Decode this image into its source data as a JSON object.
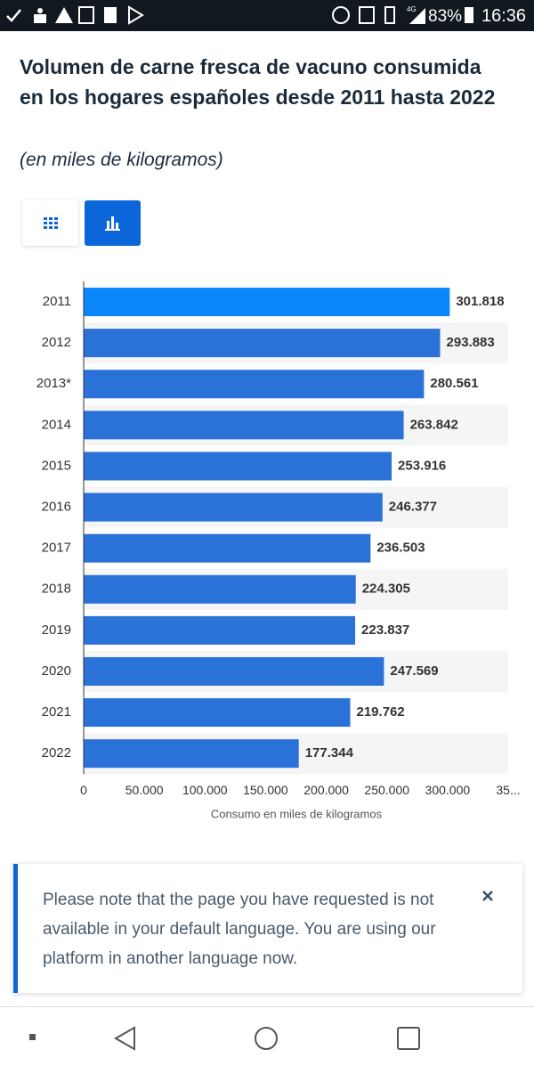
{
  "status_bar": {
    "network": "4G",
    "battery": "83%",
    "time": "16:36"
  },
  "chart_data": {
    "type": "bar",
    "orientation": "horizontal",
    "title": "Volumen de carne fresca de vacuno consumida en los hogares españoles desde 2011 hasta 2022",
    "subtitle": "(en miles de kilogramos)",
    "x_label": "Consumo en miles de kilogramos",
    "categories": [
      "2011",
      "2012",
      "2013*",
      "2014",
      "2015",
      "2016",
      "2017",
      "2018",
      "2019",
      "2020",
      "2021",
      "2022"
    ],
    "values": [
      301818,
      293883,
      280561,
      263842,
      253916,
      246377,
      236503,
      224305,
      223837,
      247569,
      219762,
      177344
    ],
    "value_labels": [
      "301.818",
      "293.883",
      "280.561",
      "263.842",
      "253.916",
      "246.377",
      "236.503",
      "224.305",
      "223.837",
      "247.569",
      "219.762",
      "177.344"
    ],
    "colors": [
      "#0b87fb",
      "#2a71d8",
      "#2a71d8",
      "#2a71d8",
      "#2a71d8",
      "#2a71d8",
      "#2a71d8",
      "#2a71d8",
      "#2a71d8",
      "#2a71d8",
      "#2a71d8",
      "#2a71d8"
    ],
    "xlim": [
      0,
      350000
    ],
    "xticks": [
      0,
      {
        "value": 50000,
        "label": "50.000"
      },
      {
        "value": 100000,
        "label": "100.000"
      },
      {
        "value": 150000,
        "label": "150.000"
      },
      {
        "value": 200000,
        "label": "200.000"
      },
      {
        "value": 250000,
        "label": "250.000"
      },
      {
        "value": 300000,
        "label": "300.000"
      },
      {
        "value": 350000,
        "label": "35..."
      }
    ],
    "grid": false
  },
  "notice": {
    "text": "Please note that the page you have requested is not available in your default language. You are using our platform in another language now."
  }
}
